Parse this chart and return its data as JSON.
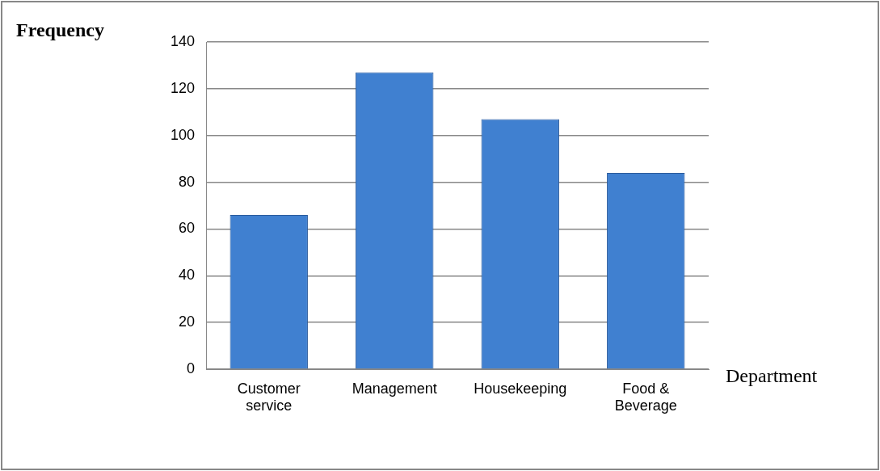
{
  "chart_data": {
    "type": "bar",
    "xlabel": "Department",
    "ylabel": "Frequency",
    "categories": [
      "Customer service",
      "Management",
      "Housekeeping",
      "Food & Beverage"
    ],
    "values": [
      66,
      127,
      107,
      84
    ],
    "color": "#4080d0",
    "ylim": [
      0,
      140
    ],
    "yticks": [
      0,
      20,
      40,
      60,
      80,
      100,
      120,
      140
    ],
    "grid": "y",
    "legend": false
  }
}
